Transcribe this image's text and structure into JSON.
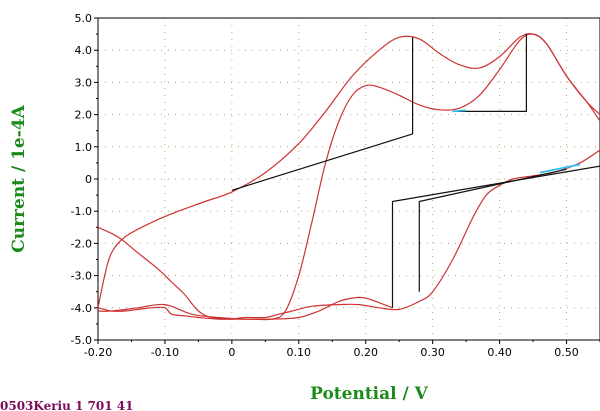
{
  "chart_data": {
    "type": "line",
    "xlabel": "Potential / V",
    "ylabel": "Current / 1e-4A",
    "xlim": [
      -0.2,
      0.55
    ],
    "ylim": [
      -5.0,
      5.0
    ],
    "x_ticks": [
      "-0.20",
      "-0.10",
      "0",
      "0.10",
      "0.20",
      "0.30",
      "0.40",
      "0.50"
    ],
    "y_ticks": [
      "5.0",
      "4.0",
      "3.0",
      "2.0",
      "1.0",
      "0",
      "-1.0",
      "-2.0",
      "-3.0",
      "-4.0",
      "-5.0"
    ],
    "grid": true,
    "footer_text": "0503Keriu 1 701 41",
    "colors": {
      "voltammogram": "#cc3333",
      "baseline": "#111111",
      "marker": "#33bbee",
      "title": "#1a8a1a"
    },
    "series": [
      {
        "style": "voltammogram",
        "points": [
          [
            -0.2,
            -4.0
          ],
          [
            -0.19,
            -4.05
          ],
          [
            -0.18,
            -4.1
          ],
          [
            -0.16,
            -4.1
          ],
          [
            -0.14,
            -4.05
          ],
          [
            -0.12,
            -4.0
          ],
          [
            -0.1,
            -4.0
          ],
          [
            -0.09,
            -4.2
          ],
          [
            -0.07,
            -4.25
          ],
          [
            -0.05,
            -4.3
          ],
          [
            -0.02,
            -4.35
          ],
          [
            0.0,
            -4.35
          ],
          [
            0.02,
            -4.3
          ],
          [
            0.05,
            -4.3
          ],
          [
            0.07,
            -4.2
          ],
          [
            0.09,
            -4.1
          ],
          [
            0.12,
            -3.95
          ],
          [
            0.16,
            -3.9
          ],
          [
            0.19,
            -3.9
          ],
          [
            0.22,
            -4.0
          ],
          [
            0.25,
            -4.05
          ],
          [
            0.28,
            -3.8
          ],
          [
            0.3,
            -3.5
          ],
          [
            0.33,
            -2.5
          ],
          [
            0.36,
            -1.2
          ],
          [
            0.38,
            -0.5
          ],
          [
            0.4,
            -0.2
          ],
          [
            0.42,
            0.0
          ],
          [
            0.45,
            0.1
          ],
          [
            0.48,
            0.2
          ],
          [
            0.52,
            0.5
          ],
          [
            0.55,
            0.9
          ]
        ]
      },
      {
        "style": "voltammogram",
        "points": [
          [
            -0.2,
            -1.5
          ],
          [
            -0.17,
            -1.8
          ],
          [
            -0.14,
            -2.3
          ],
          [
            -0.11,
            -2.8
          ],
          [
            -0.09,
            -3.2
          ],
          [
            -0.07,
            -3.6
          ],
          [
            -0.05,
            -4.1
          ],
          [
            -0.03,
            -4.3
          ],
          [
            0.0,
            -4.35
          ],
          [
            0.03,
            -4.35
          ],
          [
            0.06,
            -4.35
          ],
          [
            0.08,
            -4.1
          ],
          [
            0.1,
            -3.0
          ],
          [
            0.12,
            -1.3
          ],
          [
            0.14,
            0.5
          ],
          [
            0.16,
            1.8
          ],
          [
            0.18,
            2.6
          ],
          [
            0.2,
            2.9
          ],
          [
            0.22,
            2.85
          ],
          [
            0.25,
            2.6
          ],
          [
            0.28,
            2.3
          ],
          [
            0.31,
            2.15
          ],
          [
            0.34,
            2.2
          ],
          [
            0.37,
            2.6
          ],
          [
            0.4,
            3.4
          ],
          [
            0.43,
            4.3
          ],
          [
            0.45,
            4.5
          ],
          [
            0.47,
            4.2
          ],
          [
            0.5,
            3.2
          ],
          [
            0.53,
            2.4
          ],
          [
            0.55,
            2.0
          ]
        ]
      },
      {
        "style": "voltammogram",
        "points": [
          [
            -0.2,
            -4.0
          ],
          [
            -0.19,
            -3.0
          ],
          [
            -0.18,
            -2.3
          ],
          [
            -0.16,
            -1.8
          ],
          [
            -0.12,
            -1.35
          ],
          [
            -0.08,
            -1.0
          ],
          [
            -0.04,
            -0.7
          ],
          [
            0.0,
            -0.4
          ],
          [
            0.05,
            0.2
          ],
          [
            0.1,
            1.1
          ],
          [
            0.14,
            2.1
          ],
          [
            0.18,
            3.2
          ],
          [
            0.22,
            4.0
          ],
          [
            0.25,
            4.4
          ],
          [
            0.28,
            4.35
          ],
          [
            0.31,
            3.9
          ],
          [
            0.34,
            3.55
          ],
          [
            0.37,
            3.45
          ],
          [
            0.4,
            3.8
          ],
          [
            0.43,
            4.4
          ],
          [
            0.45,
            4.5
          ],
          [
            0.47,
            4.2
          ],
          [
            0.5,
            3.2
          ],
          [
            0.53,
            2.4
          ],
          [
            0.55,
            1.8
          ]
        ]
      },
      {
        "style": "voltammogram",
        "points": [
          [
            0.24,
            -4.0
          ],
          [
            0.2,
            -3.7
          ],
          [
            0.18,
            -3.7
          ],
          [
            0.16,
            -3.8
          ],
          [
            0.13,
            -4.1
          ],
          [
            0.1,
            -4.3
          ],
          [
            0.06,
            -4.35
          ],
          [
            0.02,
            -4.35
          ],
          [
            -0.02,
            -4.3
          ],
          [
            -0.06,
            -4.2
          ],
          [
            -0.1,
            -3.9
          ],
          [
            -0.14,
            -4.0
          ],
          [
            -0.18,
            -4.1
          ],
          [
            -0.2,
            -4.1
          ]
        ]
      },
      {
        "style": "baseline",
        "points": [
          [
            0.0,
            -0.35
          ],
          [
            0.27,
            1.4
          ],
          [
            0.27,
            4.4
          ]
        ]
      },
      {
        "style": "baseline",
        "points": [
          [
            0.33,
            2.1
          ],
          [
            0.44,
            2.1
          ],
          [
            0.44,
            4.5
          ]
        ]
      },
      {
        "style": "baseline",
        "points": [
          [
            0.24,
            -4.0
          ],
          [
            0.24,
            -0.7
          ],
          [
            0.55,
            0.4
          ]
        ]
      },
      {
        "style": "baseline",
        "points": [
          [
            0.28,
            -3.5
          ],
          [
            0.28,
            -0.7
          ],
          [
            0.5,
            0.3
          ]
        ]
      },
      {
        "style": "marker",
        "points": [
          [
            0.33,
            2.1
          ],
          [
            0.35,
            2.13
          ]
        ]
      },
      {
        "style": "marker",
        "points": [
          [
            0.46,
            0.2
          ],
          [
            0.52,
            0.45
          ]
        ]
      }
    ]
  }
}
